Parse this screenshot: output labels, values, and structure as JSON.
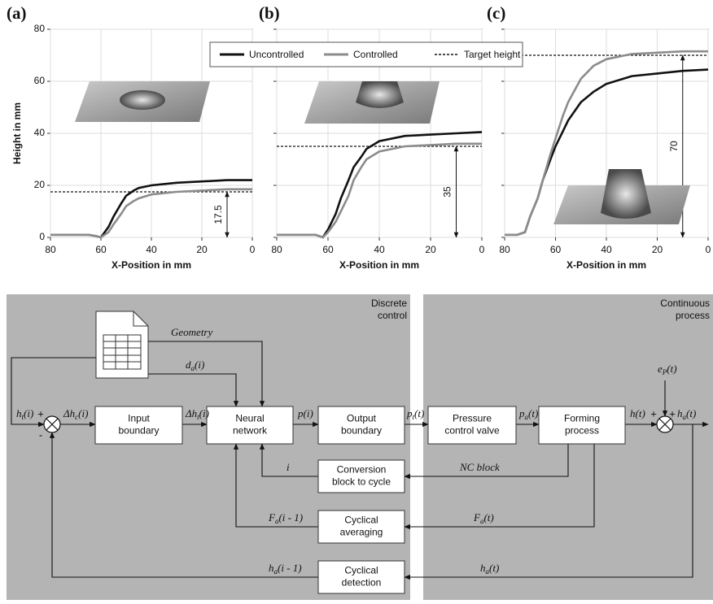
{
  "chart_data": [
    {
      "type": "line",
      "panel": "(a)",
      "ylabel": "Height in mm",
      "xlabel": "X-Position in mm",
      "xlim": [
        80,
        0
      ],
      "ylim": [
        0,
        80
      ],
      "xticks": [
        80,
        60,
        40,
        20,
        0
      ],
      "yticks": [
        0,
        20,
        40,
        60,
        80
      ],
      "show_ytick_labels": true,
      "grid": true,
      "target": 17.5,
      "x": [
        80,
        70,
        65,
        62,
        60,
        57,
        55,
        52,
        50,
        47,
        45,
        40,
        30,
        20,
        10,
        0
      ],
      "series": [
        {
          "color": "#111111",
          "values": [
            1,
            1,
            1,
            0.5,
            0,
            4,
            8,
            13,
            16,
            18,
            19,
            20,
            21,
            21.5,
            22,
            22
          ]
        },
        {
          "color": "#8c8c8c",
          "values": [
            1,
            1,
            1,
            0.5,
            0,
            2,
            5,
            9,
            12,
            14,
            15,
            16.5,
            17.5,
            18,
            18.5,
            18.5
          ]
        }
      ]
    },
    {
      "type": "line",
      "panel": "(b)",
      "xlabel": "X-Position in mm",
      "xlim": [
        80,
        0
      ],
      "ylim": [
        0,
        80
      ],
      "xticks": [
        80,
        60,
        40,
        20,
        0
      ],
      "yticks": [
        0,
        20,
        40,
        60,
        80
      ],
      "show_ytick_labels": false,
      "grid": true,
      "target": 35,
      "target_name": "Target height",
      "x": [
        80,
        70,
        65,
        62,
        60,
        57,
        55,
        52,
        50,
        47,
        45,
        40,
        30,
        20,
        10,
        0
      ],
      "series": [
        {
          "name": "Uncontrolled",
          "color": "#111111",
          "values": [
            1,
            1,
            1,
            0,
            3,
            9,
            15,
            22,
            27,
            31,
            34,
            37,
            39,
            39.5,
            40,
            40.5
          ]
        },
        {
          "name": "Controlled",
          "color": "#8c8c8c",
          "values": [
            1,
            1,
            1,
            0,
            2,
            6,
            10,
            16,
            22,
            27,
            30,
            33,
            35,
            35.5,
            36,
            36
          ]
        }
      ]
    },
    {
      "type": "line",
      "panel": "(c)",
      "xlabel": "X-Position in mm",
      "xlim": [
        80,
        0
      ],
      "ylim": [
        0,
        80
      ],
      "xticks": [
        80,
        60,
        40,
        20,
        0
      ],
      "yticks": [
        0,
        20,
        40,
        60,
        80
      ],
      "show_ytick_labels": false,
      "grid": true,
      "target": 70,
      "x": [
        80,
        77,
        75,
        72,
        70,
        67,
        65,
        62,
        60,
        57,
        55,
        50,
        45,
        40,
        30,
        20,
        10,
        0
      ],
      "series": [
        {
          "color": "#111111",
          "values": [
            1,
            1,
            1,
            2,
            8,
            15,
            22,
            30,
            35,
            41,
            45,
            52,
            56,
            59,
            62,
            63,
            64,
            64.5
          ]
        },
        {
          "color": "#8c8c8c",
          "values": [
            1,
            1,
            1,
            2,
            8,
            15,
            22,
            32,
            38,
            47,
            52,
            61,
            66,
            68.5,
            70.5,
            71,
            71.5,
            71.5
          ]
        }
      ]
    }
  ],
  "diagram": {
    "regions": [
      {
        "label": [
          "Discrete",
          "control"
        ]
      },
      {
        "label": [
          "Continuous",
          "process"
        ]
      }
    ],
    "nodes": [
      {
        "label": [
          "Input",
          "boundary"
        ]
      },
      {
        "label": [
          "Neural",
          "network"
        ]
      },
      {
        "label": [
          "Output",
          "boundary"
        ]
      },
      {
        "label": [
          "Pressure",
          "control valve"
        ]
      },
      {
        "label": [
          "Forming",
          "process"
        ]
      },
      {
        "label": [
          "Conversion",
          "block to cycle"
        ]
      },
      {
        "label": [
          "Cyclical",
          "averaging"
        ]
      },
      {
        "label": [
          "Cyclical",
          "detection"
        ]
      }
    ],
    "junctions": [
      {
        "signs": [
          "+",
          "-"
        ]
      },
      {
        "signs": [
          "+",
          "+"
        ]
      }
    ],
    "signals": [
      {
        "main": "h",
        "sub": "t",
        "tail": "(i)"
      },
      {
        "main": "Δh",
        "sub": "c",
        "tail": "(i)"
      },
      {
        "main": "Δh",
        "sub": "t",
        "tail": "(i)"
      },
      {
        "main": "Geometry"
      },
      {
        "main": "d",
        "sub": "a",
        "tail": "(i)"
      },
      {
        "main": "p(i)"
      },
      {
        "main": "p",
        "sub": "t",
        "tail": "(t)"
      },
      {
        "main": "p",
        "sub": "a",
        "tail": "(t)"
      },
      {
        "main": "h(t)"
      },
      {
        "main": "e",
        "sub": "P",
        "tail": "(t)"
      },
      {
        "main": "h",
        "sub": "a",
        "tail": "(t)"
      },
      {
        "main": "NC block"
      },
      {
        "main": "i"
      },
      {
        "main": "F",
        "sub": "a",
        "tail": "(t)"
      },
      {
        "main": "F",
        "sub": "a",
        "tail": "(i - 1)"
      },
      {
        "main": "h",
        "sub": "a",
        "tail": "(t)"
      },
      {
        "main": "h",
        "sub": "a",
        "tail": "(i - 1)"
      }
    ]
  }
}
